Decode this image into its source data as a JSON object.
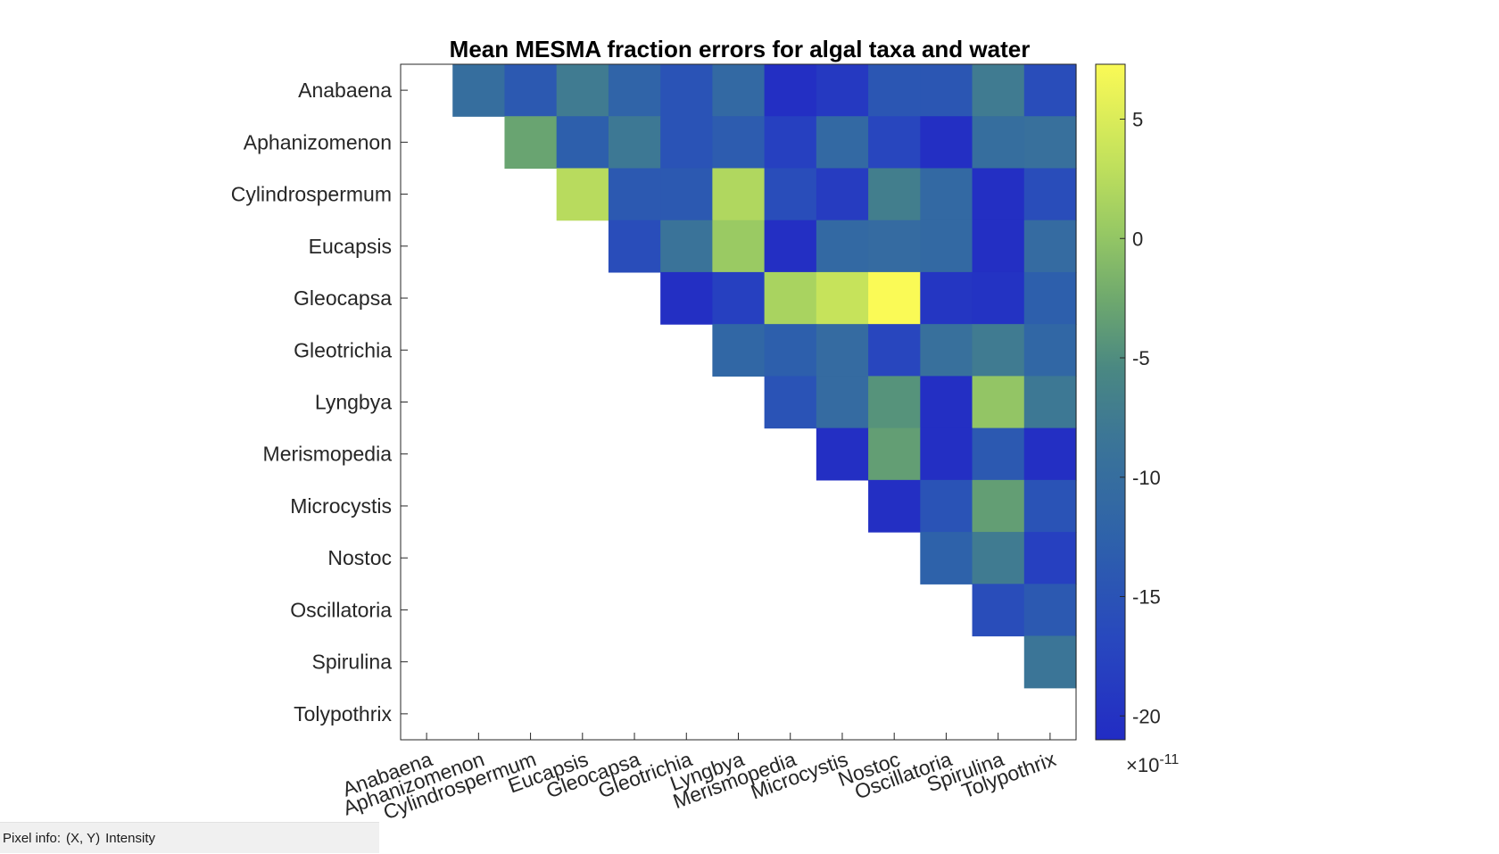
{
  "chart_data": {
    "type": "heatmap",
    "title": "Mean MESMA fraction errors for algal taxa and water",
    "row_labels": [
      "Anabaena",
      "Aphanizomenon",
      "Cylindrospermum",
      "Eucapsis",
      "Gleocapsa",
      "Gleotrichia",
      "Lyngbya",
      "Merismopedia",
      "Microcystis",
      "Nostoc",
      "Oscillatoria",
      "Spirulina",
      "Tolypothrix"
    ],
    "col_labels": [
      "Anabaena",
      "Aphanizomenon",
      "Cylindrospermum",
      "Eucapsis",
      "Gleocapsa",
      "Gleotrichia",
      "Lyngbya",
      "Merismopedia",
      "Microcystis",
      "Nostoc",
      "Oscillatoria",
      "Spirulina",
      "Tolypothrix"
    ],
    "values_note_scale": "x10^-11",
    "values": [
      [
        null,
        -10,
        -14,
        -7.5,
        -12,
        -15,
        -11,
        -20.5,
        -19,
        -14.5,
        -14.5,
        -7.5,
        -16
      ],
      [
        null,
        null,
        -3,
        -13,
        -8,
        -15,
        -13.5,
        -18,
        -11,
        -17,
        -20.5,
        -10,
        -9.5
      ],
      [
        null,
        null,
        null,
        2.5,
        -14,
        -14,
        2,
        -16,
        -18.5,
        -7,
        -11,
        -20.5,
        -16
      ],
      [
        null,
        null,
        null,
        null,
        -16,
        -9,
        0.5,
        -20.5,
        -11,
        -10.5,
        -11,
        -20.5,
        -10.5
      ],
      [
        null,
        null,
        null,
        null,
        null,
        -20.5,
        -18,
        1.5,
        3.5,
        7.5,
        -19.5,
        -20,
        -13
      ],
      [
        null,
        null,
        null,
        null,
        null,
        null,
        -11.5,
        -13,
        -10.5,
        -17,
        -9.5,
        -7.5,
        -11.5
      ],
      [
        null,
        null,
        null,
        null,
        null,
        null,
        null,
        -15,
        -10.5,
        -4.5,
        -20.5,
        0,
        -8
      ],
      [
        null,
        null,
        null,
        null,
        null,
        null,
        null,
        null,
        -20.5,
        -3.5,
        -20.5,
        -14,
        -20.5
      ],
      [
        null,
        null,
        null,
        null,
        null,
        null,
        null,
        null,
        null,
        -20.5,
        -15,
        -3.5,
        -15
      ],
      [
        null,
        null,
        null,
        null,
        null,
        null,
        null,
        null,
        null,
        null,
        -12.5,
        -7.5,
        -18
      ],
      [
        null,
        null,
        null,
        null,
        null,
        null,
        null,
        null,
        null,
        null,
        null,
        -16,
        -14
      ],
      [
        null,
        null,
        null,
        null,
        null,
        null,
        null,
        null,
        null,
        null,
        null,
        null,
        -8.5
      ],
      [
        null,
        null,
        null,
        null,
        null,
        null,
        null,
        null,
        null,
        null,
        null,
        null,
        null
      ]
    ],
    "clim": [
      -21,
      7.3
    ],
    "colormap": "parula",
    "colorbar": {
      "ticks": [
        5,
        0,
        -5,
        -10,
        -15,
        -20
      ],
      "tick_labels": [
        "5",
        "0",
        "-5",
        "-10",
        "-15",
        "-20"
      ],
      "exponent_base": "×10",
      "exponent_power": "-11",
      "placement": "right"
    },
    "grid": false
  },
  "status_bar": {
    "label": "Pixel info:",
    "coords": "(X, Y)",
    "value": "Intensity"
  }
}
